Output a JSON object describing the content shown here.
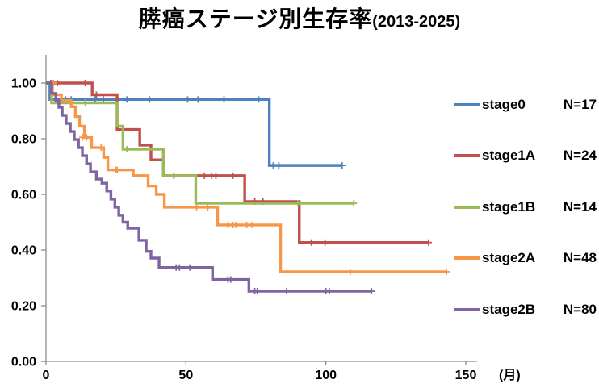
{
  "title": {
    "main": "膵癌ステージ別生存率",
    "period": "(2013-2025)"
  },
  "chart_data": {
    "type": "line",
    "subtype": "kaplan-meier-step",
    "title": "膵癌ステージ別生存率(2013-2025)",
    "xlabel": "(月)",
    "ylabel": "",
    "x_unit": "(月)",
    "xlim": [
      0,
      150
    ],
    "ylim": [
      0.0,
      1.0
    ],
    "x_ticks": [
      0,
      50,
      100,
      150
    ],
    "y_ticks": [
      "0.00",
      "0.20",
      "0.40",
      "0.60",
      "0.80",
      "1.00"
    ],
    "grid": false,
    "legend_position": "right",
    "axis_color": "#8C8C8C",
    "series": [
      {
        "name": "stage0",
        "n_label": "N=17",
        "color": "#4F81BD",
        "points": [
          [
            0,
            1.0
          ],
          [
            1.4,
            0.941
          ],
          [
            79.8,
            0.704
          ]
        ],
        "end_month": 105.8,
        "end_censored": true,
        "censors": [
          [
            7,
            0.941
          ],
          [
            9,
            0.941
          ],
          [
            17.6,
            0.941
          ],
          [
            20.5,
            0.941
          ],
          [
            28.9,
            0.941
          ],
          [
            37,
            0.941
          ],
          [
            50.6,
            0.941
          ],
          [
            54.3,
            0.941
          ],
          [
            63.6,
            0.941
          ],
          [
            76,
            0.941
          ],
          [
            81.2,
            0.704
          ],
          [
            83.2,
            0.704
          ]
        ]
      },
      {
        "name": "stage1A",
        "n_label": "N=24",
        "color": "#C0504D",
        "points": [
          [
            0,
            1.0
          ],
          [
            16.5,
            0.958
          ],
          [
            25.4,
            0.833
          ],
          [
            33.5,
            0.777
          ],
          [
            37.5,
            0.724
          ],
          [
            41.9,
            0.667
          ],
          [
            71,
            0.574
          ],
          [
            90.5,
            0.427
          ]
        ],
        "end_month": 136.7,
        "end_censored": true,
        "censors": [
          [
            1.7,
            1.0
          ],
          [
            4,
            1.0
          ],
          [
            14,
            1.0
          ],
          [
            18,
            0.958
          ],
          [
            45.7,
            0.667
          ],
          [
            56.6,
            0.667
          ],
          [
            59.2,
            0.667
          ],
          [
            60.7,
            0.667
          ],
          [
            66.8,
            0.667
          ],
          [
            74.6,
            0.574
          ],
          [
            77.5,
            0.574
          ],
          [
            94.8,
            0.427
          ],
          [
            99.7,
            0.427
          ]
        ]
      },
      {
        "name": "stage1B",
        "n_label": "N=14",
        "color": "#9BBB59",
        "points": [
          [
            0,
            1.0
          ],
          [
            2,
            0.929
          ],
          [
            25.4,
            0.845
          ],
          [
            27.5,
            0.762
          ],
          [
            41.9,
            0.667
          ],
          [
            53.5,
            0.568
          ]
        ],
        "end_month": 110,
        "end_censored": true,
        "censors": [
          [
            14,
            0.929
          ],
          [
            28.9,
            0.762
          ],
          [
            90,
            0.568
          ]
        ]
      },
      {
        "name": "stage2A",
        "n_label": "N=48",
        "color": "#F79646",
        "points": [
          [
            0,
            1.0
          ],
          [
            2.3,
            0.958
          ],
          [
            5.5,
            0.937
          ],
          [
            9,
            0.915
          ],
          [
            10.5,
            0.88
          ],
          [
            12,
            0.845
          ],
          [
            13.7,
            0.805
          ],
          [
            16.3,
            0.768
          ],
          [
            20.6,
            0.733
          ],
          [
            22.1,
            0.688
          ],
          [
            31.2,
            0.667
          ],
          [
            36.5,
            0.63
          ],
          [
            39.4,
            0.6
          ],
          [
            42.3,
            0.554
          ],
          [
            61.3,
            0.49
          ],
          [
            83.8,
            0.322
          ]
        ],
        "end_month": 143.1,
        "end_censored": true,
        "censors": [
          [
            2.6,
            1.0
          ],
          [
            13,
            0.805
          ],
          [
            14.5,
            0.805
          ],
          [
            19.7,
            0.768
          ],
          [
            24.9,
            0.688
          ],
          [
            25.4,
            0.688
          ],
          [
            53.8,
            0.554
          ],
          [
            57.8,
            0.554
          ],
          [
            65,
            0.49
          ],
          [
            66.8,
            0.49
          ],
          [
            67.9,
            0.49
          ],
          [
            71.7,
            0.49
          ],
          [
            73.7,
            0.49
          ],
          [
            108.7,
            0.322
          ]
        ]
      },
      {
        "name": "stage2B",
        "n_label": "N=80",
        "color": "#8064A2",
        "points": [
          [
            0,
            1.0
          ],
          [
            2,
            0.963
          ],
          [
            3.5,
            0.937
          ],
          [
            4.6,
            0.913
          ],
          [
            5.8,
            0.884
          ],
          [
            7.2,
            0.855
          ],
          [
            8.7,
            0.826
          ],
          [
            10.1,
            0.797
          ],
          [
            11.6,
            0.768
          ],
          [
            13,
            0.739
          ],
          [
            14.5,
            0.71
          ],
          [
            15.9,
            0.681
          ],
          [
            18,
            0.655
          ],
          [
            20,
            0.64
          ],
          [
            21.7,
            0.612
          ],
          [
            23.2,
            0.583
          ],
          [
            24.6,
            0.554
          ],
          [
            26,
            0.525
          ],
          [
            27.5,
            0.5
          ],
          [
            29.2,
            0.478
          ],
          [
            33.2,
            0.435
          ],
          [
            35.8,
            0.395
          ],
          [
            37.5,
            0.371
          ],
          [
            40.4,
            0.337
          ],
          [
            59.5,
            0.294
          ],
          [
            72.5,
            0.252
          ]
        ],
        "end_month": 116.3,
        "end_censored": true,
        "censors": [
          [
            46.5,
            0.337
          ],
          [
            47.7,
            0.337
          ],
          [
            51.4,
            0.337
          ],
          [
            65,
            0.294
          ],
          [
            66,
            0.294
          ],
          [
            74.6,
            0.252
          ],
          [
            75.5,
            0.252
          ],
          [
            86,
            0.252
          ],
          [
            100,
            0.252
          ],
          [
            101.2,
            0.252
          ]
        ]
      }
    ]
  },
  "legend": {
    "entries": [
      {
        "label": "stage0",
        "n": "N=17"
      },
      {
        "label": "stage1A",
        "n": "N=24"
      },
      {
        "label": "stage1B",
        "n": "N=14"
      },
      {
        "label": "stage2A",
        "n": "N=48"
      },
      {
        "label": "stage2B",
        "n": "N=80"
      }
    ]
  }
}
